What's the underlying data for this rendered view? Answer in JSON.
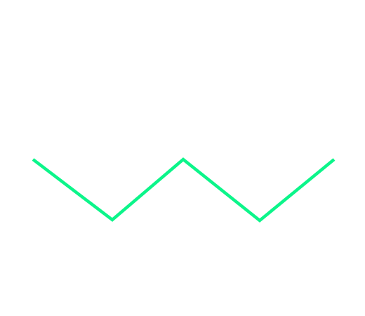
{
  "diagram": {
    "kind": "skeletal-zigzag",
    "bonds": 4,
    "line_color": "#0cf58a",
    "background_color": "#ffffff"
  }
}
